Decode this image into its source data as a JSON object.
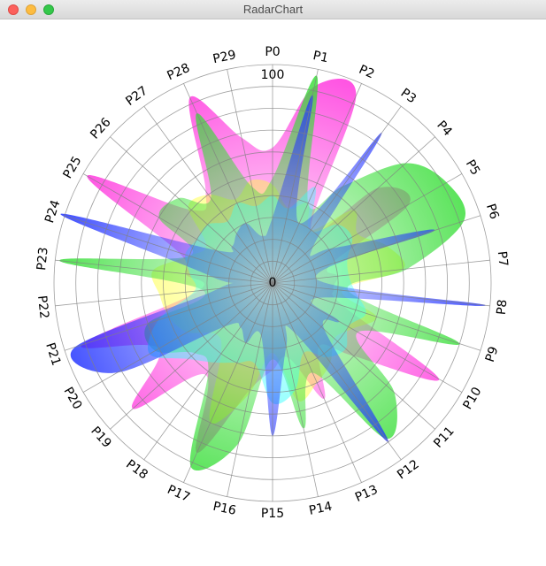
{
  "window": {
    "title": "RadarChart"
  },
  "chart_data": {
    "type": "radar",
    "title": "",
    "axes": [
      "P0",
      "P1",
      "P2",
      "P3",
      "P4",
      "P5",
      "P6",
      "P7",
      "P8",
      "P9",
      "P10",
      "P11",
      "P12",
      "P13",
      "P14",
      "P15",
      "P16",
      "P17",
      "P18",
      "P19",
      "P20",
      "P21",
      "P22",
      "P23",
      "P24",
      "P25",
      "P26",
      "P27",
      "P28",
      "P29"
    ],
    "rlim": [
      0,
      100
    ],
    "r_tick_labels": [
      "0",
      "100"
    ],
    "grid": true,
    "smooth": true,
    "series": [
      {
        "color": "#ff33dd",
        "values": [
          62,
          92,
          94,
          30,
          65,
          72,
          28,
          30,
          28,
          34,
          88,
          50,
          36,
          58,
          35,
          40,
          50,
          85,
          52,
          86,
          60,
          92,
          34,
          40,
          45,
          98,
          50,
          52,
          93,
          68
        ]
      },
      {
        "color": "#ffff33",
        "values": [
          45,
          35,
          40,
          30,
          50,
          45,
          55,
          60,
          32,
          50,
          42,
          38,
          45,
          50,
          55,
          32,
          52,
          70,
          40,
          35,
          45,
          50,
          52,
          55,
          40,
          35,
          52,
          50,
          42,
          48
        ]
      },
      {
        "color": "#33dd33",
        "values": [
          48,
          97,
          40,
          55,
          82,
          92,
          92,
          62,
          35,
          90,
          45,
          75,
          88,
          45,
          68,
          35,
          75,
          92,
          50,
          48,
          62,
          60,
          32,
          98,
          40,
          60,
          58,
          48,
          85,
          45
        ]
      },
      {
        "color": "#33ffff",
        "values": [
          40,
          35,
          48,
          30,
          40,
          42,
          36,
          35,
          38,
          45,
          40,
          45,
          42,
          35,
          50,
          55,
          38,
          40,
          45,
          52,
          65,
          55,
          36,
          38,
          42,
          40,
          40,
          35,
          40,
          36
        ]
      },
      {
        "color": "#2233ff",
        "values": [
          30,
          88,
          30,
          85,
          25,
          32,
          78,
          20,
          98,
          22,
          35,
          32,
          90,
          25,
          30,
          70,
          25,
          30,
          25,
          30,
          82,
          95,
          25,
          28,
          102,
          30,
          25,
          28,
          30,
          22
        ]
      }
    ]
  }
}
